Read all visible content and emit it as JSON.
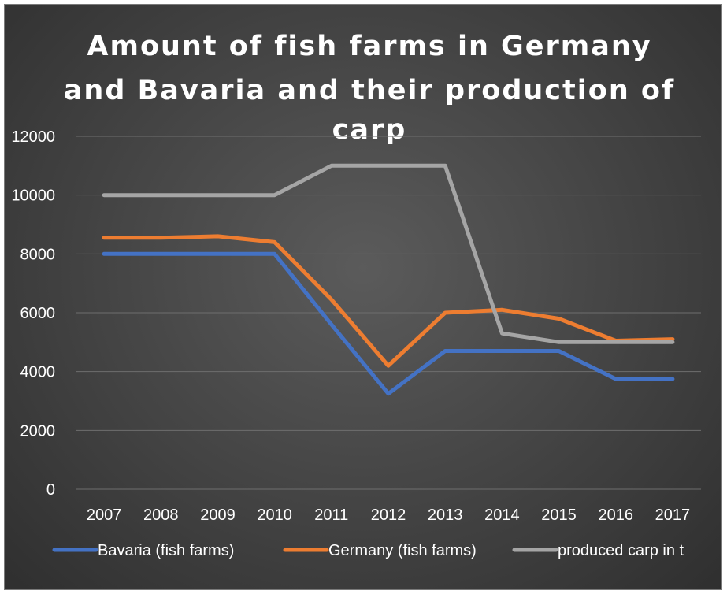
{
  "chart_data": {
    "type": "line",
    "title_lines": [
      "Amount of fish farms in Germany",
      "and Bavaria and their production of",
      "carp"
    ],
    "categories": [
      "2007",
      "2008",
      "2009",
      "2010",
      "2011",
      "2012",
      "2013",
      "2014",
      "2015",
      "2016",
      "2017"
    ],
    "ylim": [
      0,
      12000
    ],
    "y_ticks": [
      "0",
      "2000",
      "4000",
      "6000",
      "8000",
      "10000",
      "12000"
    ],
    "grid": "horizontal",
    "legend_position": "bottom",
    "series": [
      {
        "name": "Bavaria (fish farms)",
        "color": "#4472c4",
        "values": [
          8000,
          8000,
          8000,
          8000,
          5600,
          3250,
          4700,
          4700,
          4700,
          3750,
          3750
        ]
      },
      {
        "name": "Germany (fish farms)",
        "color": "#ed7d31",
        "values": [
          8550,
          8550,
          8600,
          8400,
          6450,
          4200,
          6000,
          6100,
          5800,
          5050,
          5100
        ]
      },
      {
        "name": "produced carp in t",
        "color": "#a5a5a5",
        "values": [
          10000,
          10000,
          10000,
          10000,
          11000,
          11000,
          11000,
          5300,
          5000,
          5000,
          5000
        ]
      }
    ]
  }
}
